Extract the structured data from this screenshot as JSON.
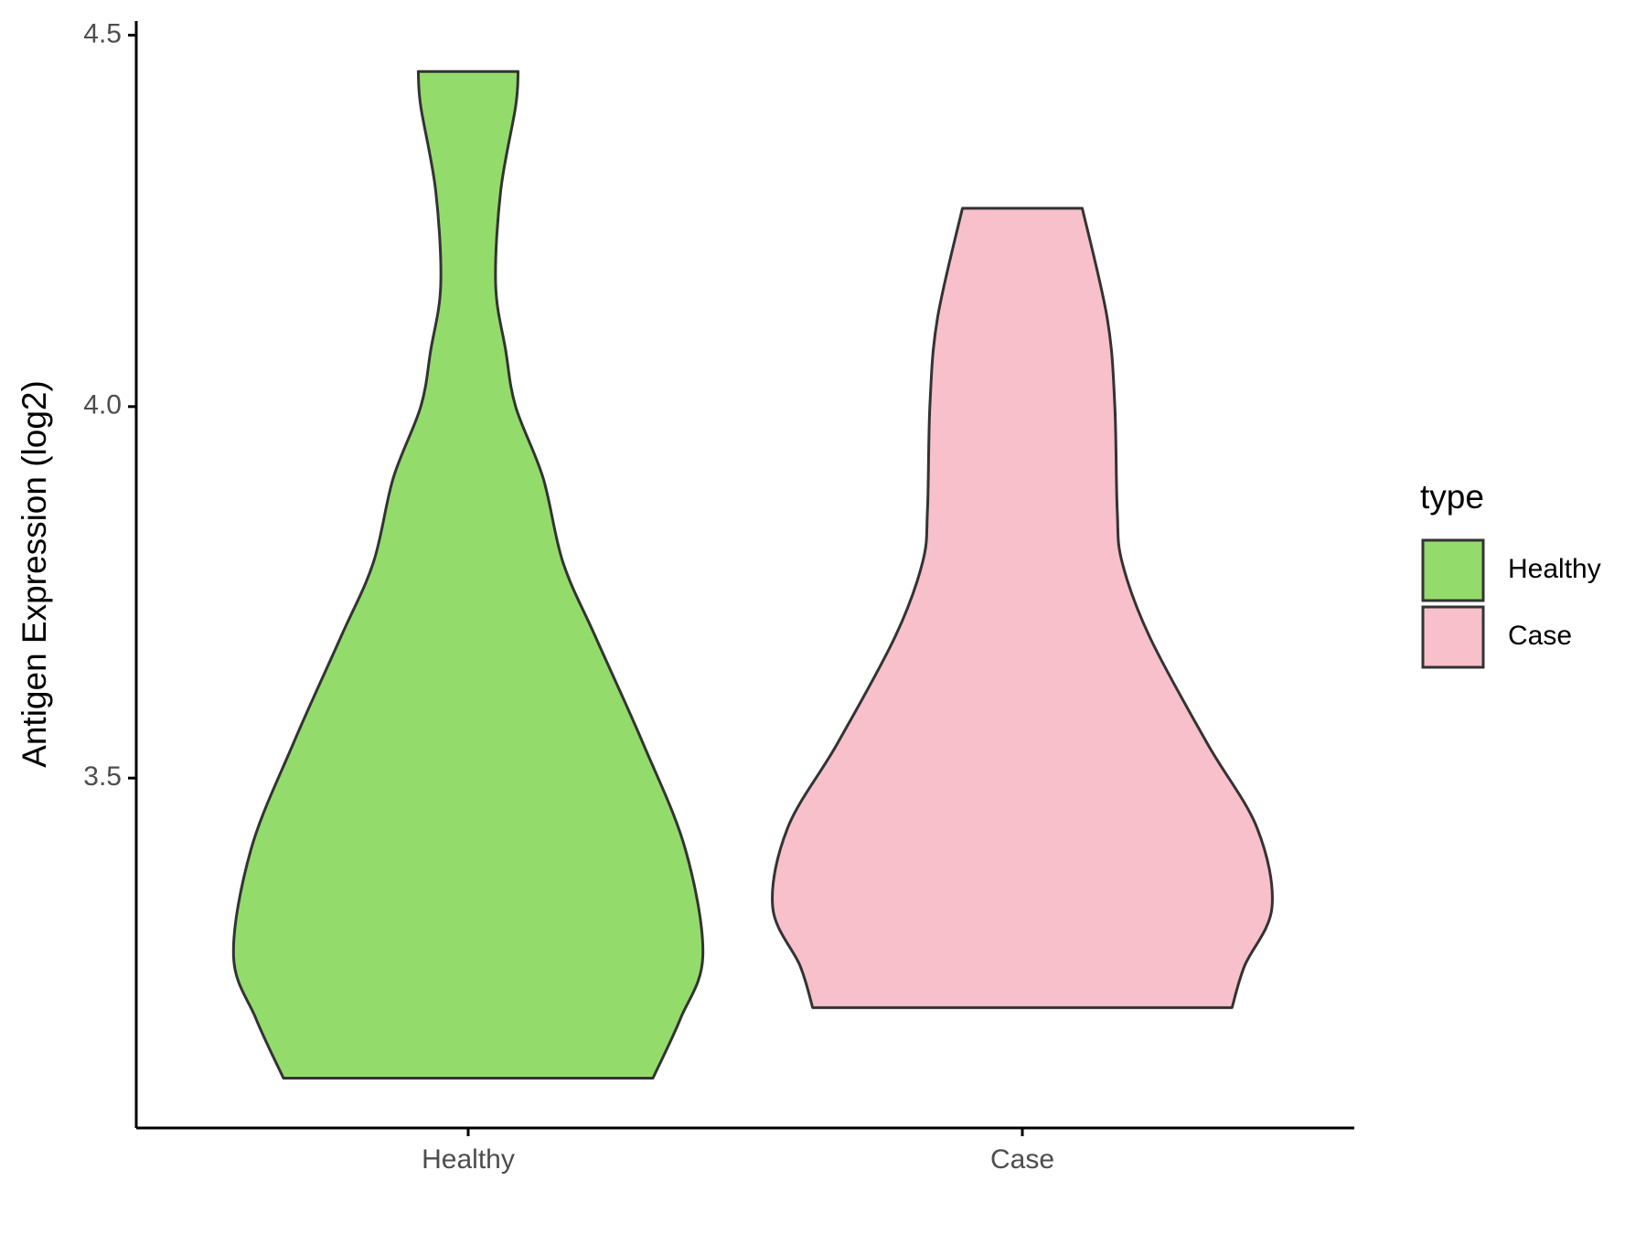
{
  "chart_data": {
    "type": "violin",
    "y_label": "Antigen Expression (log2)",
    "categories": [
      "Healthy",
      "Case"
    ],
    "series": [
      {
        "name": "Healthy",
        "color": "#93dc6b",
        "values": [
          4.451,
          4.404,
          4.29,
          4.164,
          4.076,
          4.0,
          3.904,
          3.79,
          3.69,
          3.547,
          3.404,
          3.261,
          3.176,
          3.096
        ],
        "density": [
          0.2,
          0.19,
          0.13,
          0.11,
          0.15,
          0.19,
          0.3,
          0.38,
          0.51,
          0.7,
          0.87,
          0.94,
          0.85,
          0.74
        ]
      },
      {
        "name": "Case",
        "color": "#f7c0cb",
        "values": [
          4.267,
          4.119,
          4.004,
          3.861,
          3.79,
          3.69,
          3.547,
          3.433,
          3.326,
          3.247,
          3.191
        ],
        "density": [
          0.24,
          0.34,
          0.37,
          0.38,
          0.4,
          0.51,
          0.74,
          0.94,
          1.0,
          0.89,
          0.84
        ]
      }
    ],
    "ylim": [
      3.029,
      4.519
    ],
    "yticks": [
      3.5,
      {
        "value": 4,
        "label": "4.0"
      },
      4.5
    ],
    "legend_title": "type",
    "legend": "right"
  }
}
